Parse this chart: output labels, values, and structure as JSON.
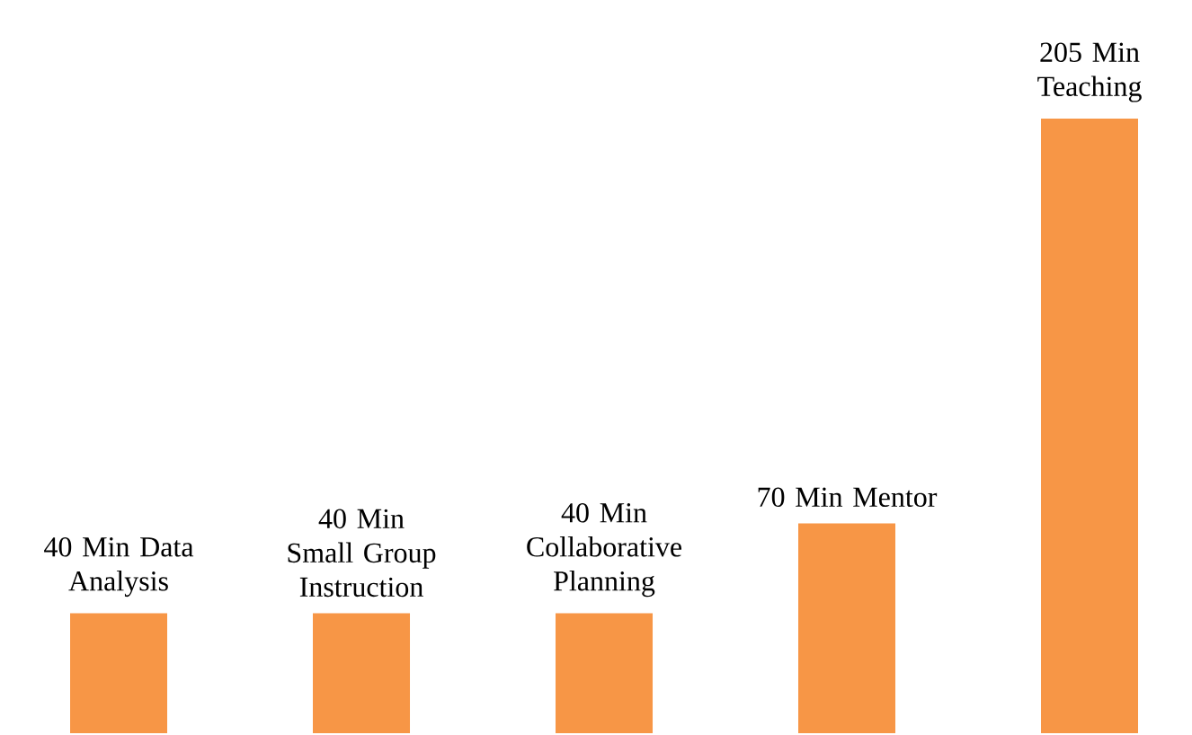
{
  "chart_data": {
    "type": "bar",
    "categories": [
      "Data Analysis",
      "Small Group Instruction",
      "Collaborative Planning",
      "Mentor",
      "Teaching"
    ],
    "values": [
      40,
      40,
      40,
      70,
      205
    ],
    "value_labels": [
      "40 Min",
      "40 Min",
      "40 Min",
      "70 Min",
      "205 Min"
    ],
    "color": "#f79646"
  }
}
